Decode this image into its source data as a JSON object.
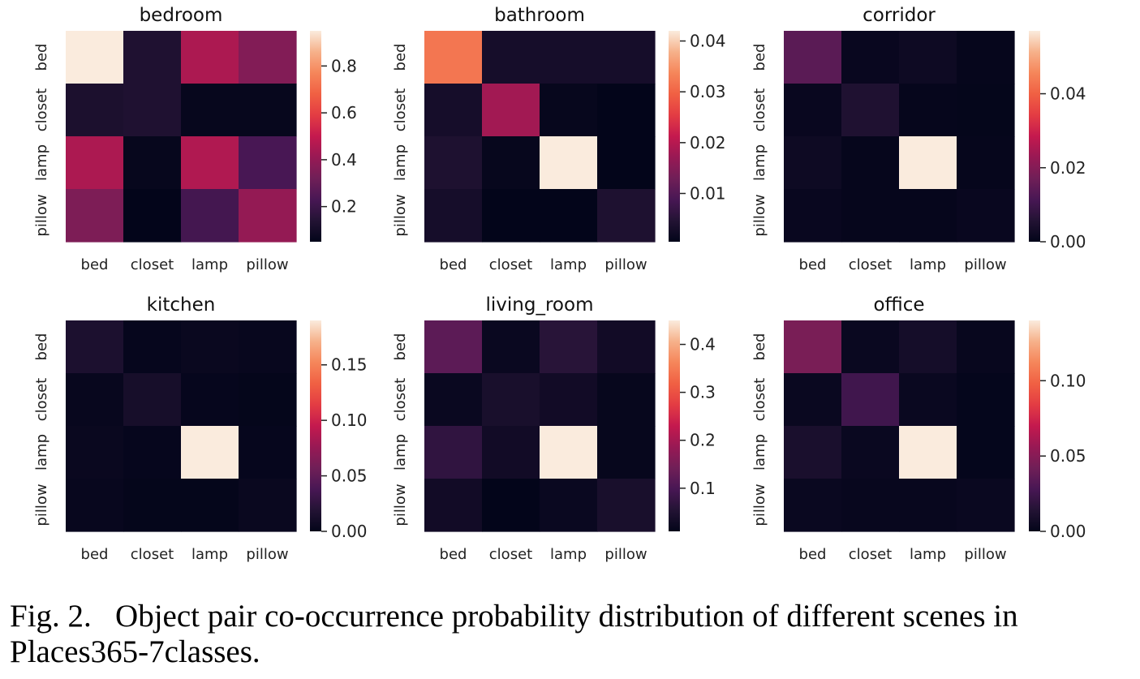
{
  "chart_data": [
    {
      "type": "heatmap",
      "title": "bedroom",
      "x_labels": [
        "bed",
        "closet",
        "lamp",
        "pillow"
      ],
      "y_labels": [
        "bed",
        "closet",
        "lamp",
        "pillow"
      ],
      "values": [
        [
          0.95,
          0.13,
          0.45,
          0.36
        ],
        [
          0.12,
          0.13,
          0.06,
          0.06
        ],
        [
          0.45,
          0.06,
          0.46,
          0.23
        ],
        [
          0.35,
          0.05,
          0.22,
          0.4
        ]
      ],
      "colorbar": {
        "vmin": 0.05,
        "vmax": 0.95,
        "ticks": [
          0.2,
          0.4,
          0.6,
          0.8
        ],
        "tick_labels": [
          "0.2",
          "0.4",
          "0.6",
          "0.8"
        ]
      }
    },
    {
      "type": "heatmap",
      "title": "bathroom",
      "x_labels": [
        "bed",
        "closet",
        "lamp",
        "pillow"
      ],
      "y_labels": [
        "bed",
        "closet",
        "lamp",
        "pillow"
      ],
      "values": [
        [
          0.032,
          0.003,
          0.003,
          0.003
        ],
        [
          0.003,
          0.018,
          0.001,
          0.0005
        ],
        [
          0.004,
          0.001,
          0.042,
          0.0005
        ],
        [
          0.003,
          0.0005,
          0.0005,
          0.004
        ]
      ],
      "colorbar": {
        "vmin": 0.0005,
        "vmax": 0.042,
        "ticks": [
          0.01,
          0.02,
          0.03,
          0.04
        ],
        "tick_labels": [
          "0.01",
          "0.02",
          "0.03",
          "0.04"
        ]
      }
    },
    {
      "type": "heatmap",
      "title": "corridor",
      "x_labels": [
        "bed",
        "closet",
        "lamp",
        "pillow"
      ],
      "y_labels": [
        "bed",
        "closet",
        "lamp",
        "pillow"
      ],
      "values": [
        [
          0.014,
          0.001,
          0.002,
          0.0005
        ],
        [
          0.001,
          0.005,
          0.0005,
          0.0003
        ],
        [
          0.002,
          0.0005,
          0.057,
          0.0005
        ],
        [
          0.001,
          0.0005,
          0.0005,
          0.001
        ]
      ],
      "colorbar": {
        "vmin": 0.0,
        "vmax": 0.057,
        "ticks": [
          0.0,
          0.02,
          0.04
        ],
        "tick_labels": [
          "0.00",
          "0.02",
          "0.04"
        ]
      }
    },
    {
      "type": "heatmap",
      "title": "kitchen",
      "x_labels": [
        "bed",
        "closet",
        "lamp",
        "pillow"
      ],
      "y_labels": [
        "bed",
        "closet",
        "lamp",
        "pillow"
      ],
      "values": [
        [
          0.015,
          0.002,
          0.004,
          0.003
        ],
        [
          0.003,
          0.012,
          0.002,
          0.001
        ],
        [
          0.004,
          0.002,
          0.19,
          0.002
        ],
        [
          0.003,
          0.001,
          0.001,
          0.004
        ]
      ],
      "colorbar": {
        "vmin": 0.0,
        "vmax": 0.19,
        "ticks": [
          0.0,
          0.05,
          0.1,
          0.15
        ],
        "tick_labels": [
          "0.00",
          "0.05",
          "0.10",
          "0.15"
        ]
      }
    },
    {
      "type": "heatmap",
      "title": "living_room",
      "x_labels": [
        "bed",
        "closet",
        "lamp",
        "pillow"
      ],
      "y_labels": [
        "bed",
        "closet",
        "lamp",
        "pillow"
      ],
      "values": [
        [
          0.12,
          0.02,
          0.06,
          0.03
        ],
        [
          0.02,
          0.04,
          0.03,
          0.015
        ],
        [
          0.07,
          0.03,
          0.45,
          0.015
        ],
        [
          0.03,
          0.01,
          0.02,
          0.04
        ]
      ],
      "colorbar": {
        "vmin": 0.01,
        "vmax": 0.45,
        "ticks": [
          0.1,
          0.2,
          0.3,
          0.4
        ],
        "tick_labels": [
          "0.1",
          "0.2",
          "0.3",
          "0.4"
        ]
      }
    },
    {
      "type": "heatmap",
      "title": "office",
      "x_labels": [
        "bed",
        "closet",
        "lamp",
        "pillow"
      ],
      "y_labels": [
        "bed",
        "closet",
        "lamp",
        "pillow"
      ],
      "values": [
        [
          0.045,
          0.003,
          0.008,
          0.002
        ],
        [
          0.003,
          0.025,
          0.003,
          0.001
        ],
        [
          0.01,
          0.003,
          0.14,
          0.001
        ],
        [
          0.003,
          0.002,
          0.002,
          0.003
        ]
      ],
      "colorbar": {
        "vmin": 0.0,
        "vmax": 0.14,
        "ticks": [
          0.0,
          0.05,
          0.1
        ],
        "tick_labels": [
          "0.00",
          "0.05",
          "0.10"
        ]
      }
    }
  ],
  "caption": {
    "label": "Fig. 2.",
    "text": "Object pair co-occurrence probability distribution of different scenes in Places365-7classes."
  }
}
